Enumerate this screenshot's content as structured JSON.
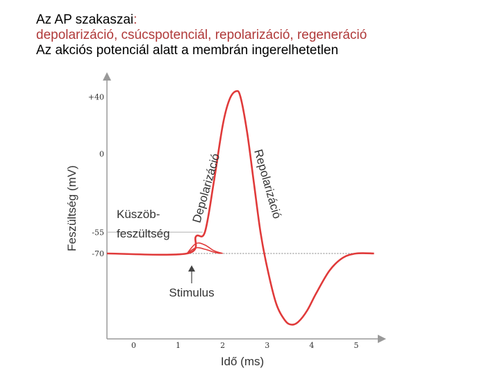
{
  "header": {
    "title": "Az AP szakaszai",
    "title_colon": ":",
    "phases": "depolarizáció, csúcspotenciál, repolarizáció, regeneráció",
    "note": "Az akciós potenciál alatt a membrán ingerelhetetlen"
  },
  "chart_data": {
    "type": "line",
    "xlabel": "Idő (ms)",
    "ylabel": "Feszültség (mV)",
    "x_ticks": [
      "0",
      "1",
      "2",
      "3",
      "4",
      "5"
    ],
    "y_ticks": [
      "+40",
      "0",
      "-55",
      "-70"
    ],
    "xlim": [
      -0.6,
      5.5
    ],
    "ylim": [
      -130,
      52
    ],
    "threshold": -55,
    "resting": -70,
    "grid": false,
    "series": [
      {
        "color": "#e03a3a",
        "x": [
          -0.6,
          1.2,
          1.4,
          1.6,
          1.8,
          2.0,
          2.15,
          2.3,
          2.4,
          2.55,
          2.7,
          2.85,
          3.0,
          3.2,
          3.4,
          3.55,
          3.7,
          3.9,
          4.1,
          4.4,
          4.7,
          5.0,
          5.4
        ],
        "y": [
          -70,
          -70,
          -58,
          -55,
          -20,
          20,
          38,
          44,
          40,
          15,
          -20,
          -55,
          -80,
          -105,
          -117,
          -120,
          -118,
          -110,
          -98,
          -82,
          -73,
          -70,
          -70
        ]
      }
    ],
    "subthreshold": [
      {
        "color": "#e03a3a",
        "x": [
          1.2,
          1.4,
          1.6,
          1.8,
          2.0
        ],
        "y": [
          -70,
          -63,
          -64,
          -68,
          -70
        ]
      },
      {
        "color": "#e03a3a",
        "x": [
          1.2,
          1.4,
          1.6,
          1.8,
          1.95
        ],
        "y": [
          -70,
          -66,
          -67,
          -69,
          -70
        ]
      }
    ],
    "annotations": {
      "threshold_label_line1": "Küszöb-",
      "threshold_label_line2": "feszültség",
      "depolarization": "Depolarizáció",
      "repolarization": "Repolarizáció",
      "stimulus": "Stimulus"
    },
    "colors": {
      "trace": "#e03a3a",
      "axis": "#999999",
      "threshold_line": "#bbbbbb"
    }
  }
}
